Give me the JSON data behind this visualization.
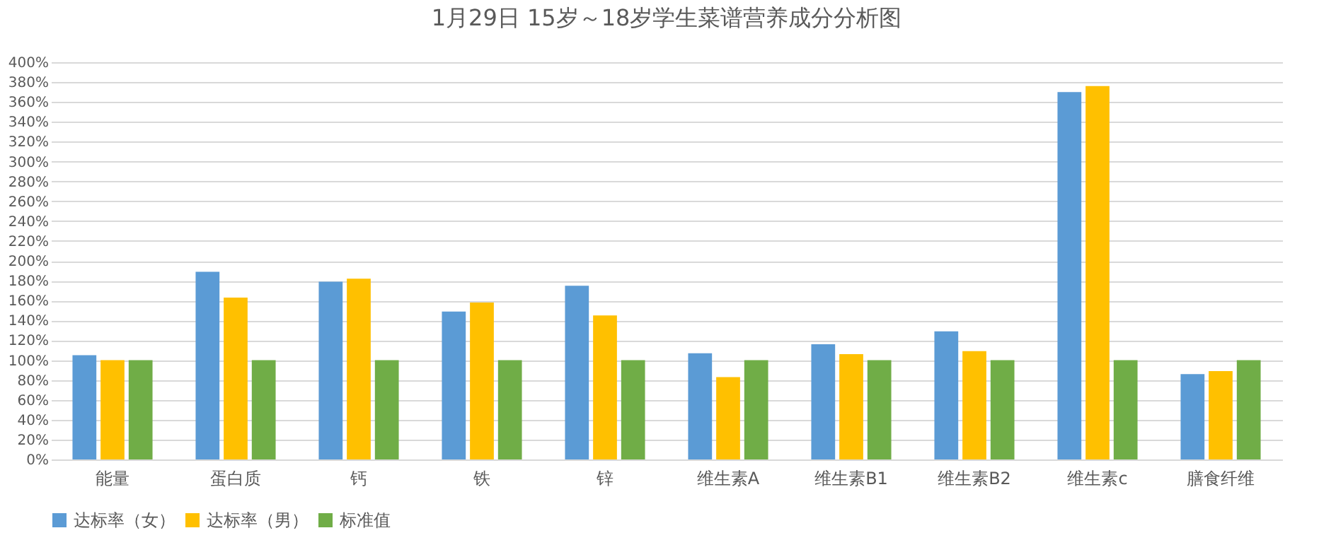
{
  "chart_data": {
    "type": "bar",
    "title": "1月29日 15岁～18岁学生菜谱营养成分分析图",
    "categories": [
      "能量",
      "蛋白质",
      "钙",
      "铁",
      "锌",
      "维生素A",
      "维生素B1",
      "维生素B2",
      "维生素c",
      "膳食纤维"
    ],
    "series": [
      {
        "name": "达标率（女）",
        "color": "#5b9bd5",
        "values": [
          105,
          189,
          179,
          149,
          175,
          107,
          116,
          129,
          370,
          86
        ]
      },
      {
        "name": "达标率（男）",
        "color": "#ffc000",
        "values": [
          100,
          163,
          182,
          158,
          145,
          83,
          106,
          109,
          376,
          89
        ]
      },
      {
        "name": "标准值",
        "color": "#70ad47",
        "values": [
          100,
          100,
          100,
          100,
          100,
          100,
          100,
          100,
          100,
          100
        ]
      }
    ],
    "ylim": [
      0,
      400
    ],
    "yticks": [
      {
        "value": 0,
        "label": "0%"
      },
      {
        "value": 20,
        "label": "20%"
      },
      {
        "value": 40,
        "label": "40%"
      },
      {
        "value": 60,
        "label": "60%"
      },
      {
        "value": 80,
        "label": "80%"
      },
      {
        "value": 100,
        "label": "100%"
      },
      {
        "value": 120,
        "label": "120%"
      },
      {
        "value": 140,
        "label": "140%"
      },
      {
        "value": 160,
        "label": "160%"
      },
      {
        "value": 180,
        "label": "180%"
      },
      {
        "value": 200,
        "label": "200%"
      },
      {
        "value": 220,
        "label": "220%"
      },
      {
        "value": 240,
        "label": "240%"
      },
      {
        "value": 260,
        "label": "260%"
      },
      {
        "value": 280,
        "label": "280%"
      },
      {
        "value": 300,
        "label": "300%"
      },
      {
        "value": 320,
        "label": "320%"
      },
      {
        "value": 340,
        "label": "340%"
      },
      {
        "value": 360,
        "label": "360%"
      },
      {
        "value": 380,
        "label": "380%"
      },
      {
        "value": 400,
        "label": "400%"
      }
    ],
    "grid": "y",
    "legend": "bottom"
  }
}
